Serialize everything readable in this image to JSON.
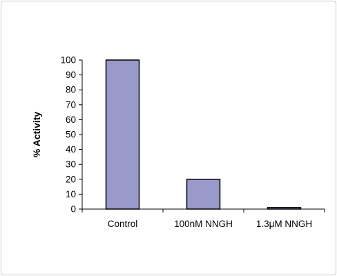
{
  "chart_data": {
    "type": "bar",
    "categories": [
      "Control",
      "100nM NNGH",
      "1.3μM NNGH"
    ],
    "values": [
      100,
      20,
      1
    ],
    "ylabel": "% Activity",
    "xlabel": "",
    "ylim": [
      0,
      100
    ],
    "yticks": [
      0,
      10,
      20,
      30,
      40,
      50,
      60,
      70,
      80,
      90,
      100
    ],
    "grid": false,
    "bar_color": "#9999cc",
    "bar_edge_color": "#000000"
  }
}
